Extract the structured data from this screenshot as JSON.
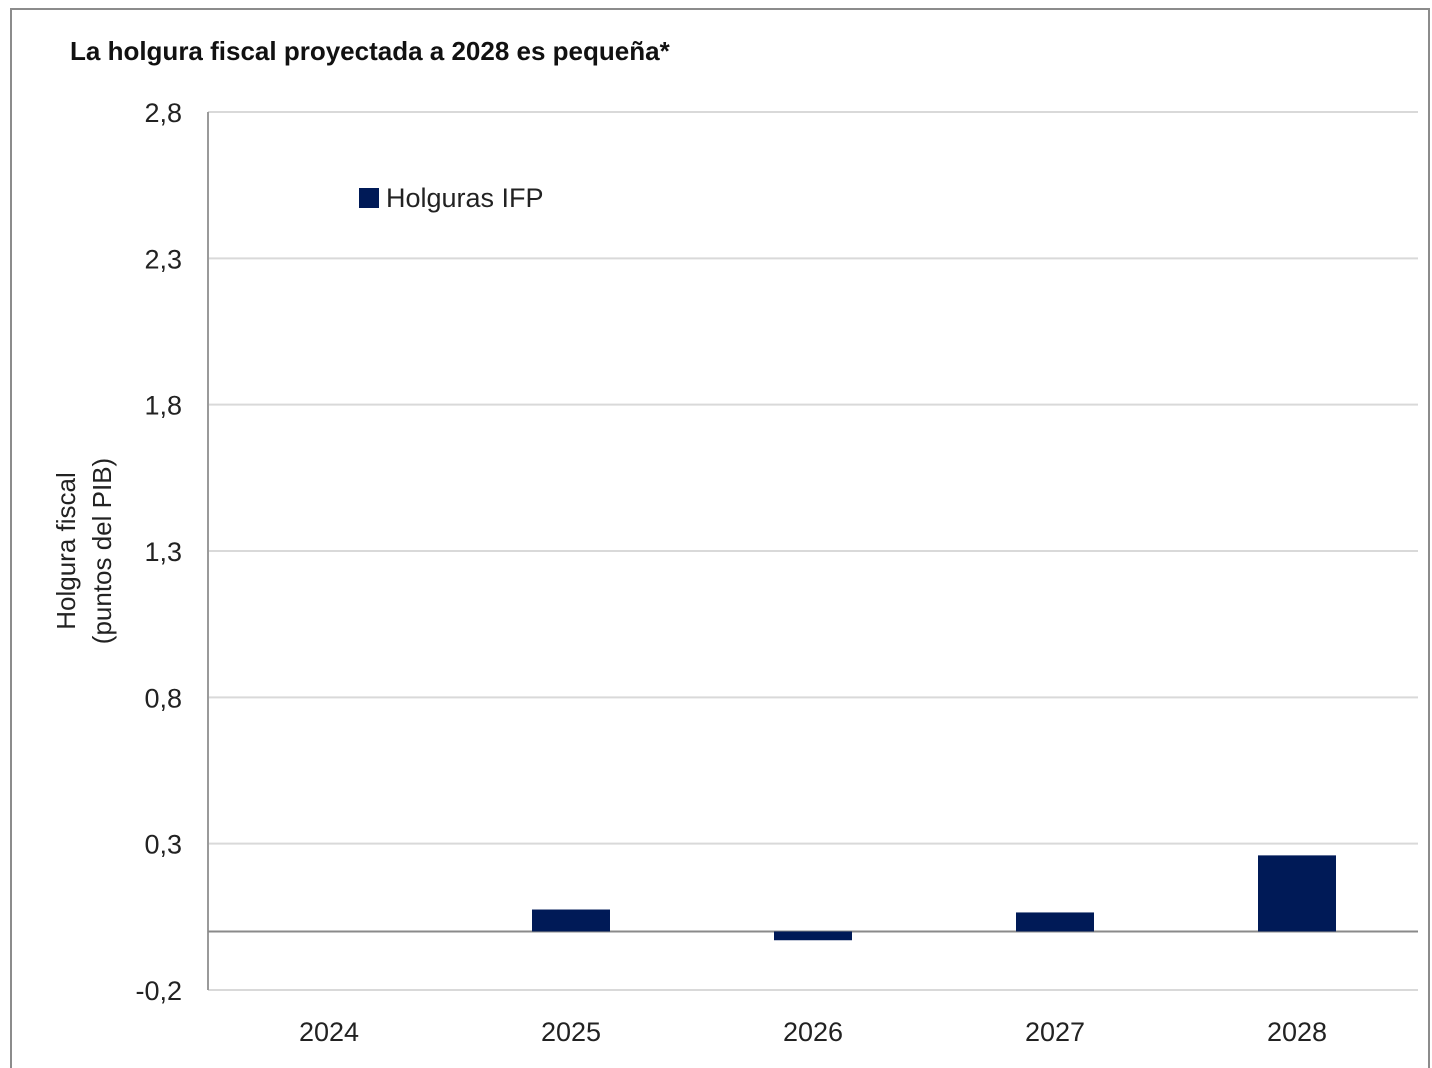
{
  "chart_data": {
    "type": "bar",
    "title": "La holgura fiscal proyectada a 2028 es pequeña*",
    "ylabel_lines": [
      "Holgura fiscal",
      "(puntos del PIB)"
    ],
    "xlabel": "",
    "categories": [
      "2024",
      "2025",
      "2026",
      "2027",
      "2028"
    ],
    "series": [
      {
        "name": "Holguras IFP",
        "values": [
          0.0,
          0.075,
          -0.03,
          0.065,
          0.26
        ],
        "color": "#001a57"
      }
    ],
    "ylim": [
      -0.2,
      2.8
    ],
    "yticks": [
      2.8,
      2.3,
      1.8,
      1.3,
      0.8,
      0.3,
      -0.2
    ],
    "ytick_labels": [
      "2,8",
      "2,3",
      "1,8",
      "1,3",
      "0,8",
      "0,3",
      "-0,2"
    ],
    "grid": true,
    "legend_position": "top-left"
  }
}
